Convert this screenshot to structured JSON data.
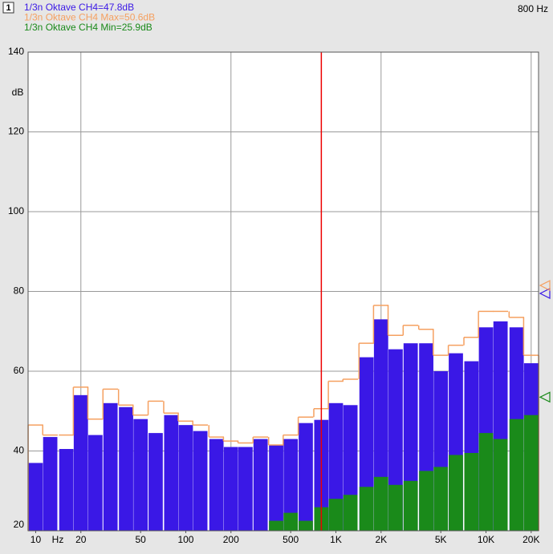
{
  "chart_data": {
    "type": "spectrum",
    "channel": "1",
    "cursor_label": "800 Hz",
    "cursor": 800,
    "y_unit": "dB",
    "x_unit": "Hz",
    "x": [
      10,
      12.5,
      16,
      20,
      25,
      31.5,
      40,
      50,
      63,
      80,
      100,
      125,
      160,
      200,
      250,
      315,
      400,
      500,
      630,
      800,
      1000,
      1250,
      1600,
      2000,
      2500,
      3150,
      4000,
      5000,
      6300,
      8000,
      10000,
      12500,
      16000,
      20000
    ],
    "series": [
      {
        "name": "1/3n Oktave CH4=47.8dB",
        "color": "#3a18e6",
        "style": "bar",
        "level_marker": 79.5,
        "values": [
          37,
          43.5,
          40.5,
          54,
          44,
          52,
          51,
          48,
          44.5,
          49,
          46.5,
          45,
          43,
          41,
          41,
          43,
          41.5,
          43,
          47,
          47.8,
          52,
          51.5,
          63.5,
          73,
          65.5,
          67,
          67,
          60,
          64.5,
          62.5,
          71,
          72.5,
          71,
          62
        ]
      },
      {
        "name": "1/3n Oktave CH4 Max=50.6dB",
        "color": "#f5a060",
        "style": "outline",
        "level_marker": 81.5,
        "values": [
          46.5,
          44,
          44,
          56,
          48,
          55.5,
          51.5,
          49,
          52.5,
          49.5,
          47.5,
          46.5,
          43.5,
          42.5,
          42,
          43.5,
          41.5,
          44,
          48.5,
          50.6,
          57.5,
          58,
          67,
          76.5,
          69,
          71.5,
          70.5,
          64,
          66.5,
          68.5,
          75,
          75,
          73.5,
          64
        ]
      },
      {
        "name": "1/3n Oktave CH4 Min=25.9dB",
        "color": "#1a8a1a",
        "style": "bar",
        "level_marker": 53.5,
        "values": [
          null,
          null,
          null,
          null,
          null,
          null,
          null,
          null,
          null,
          null,
          null,
          null,
          null,
          null,
          null,
          null,
          22.5,
          24.5,
          22.5,
          25.9,
          28,
          29,
          31,
          33.5,
          31.5,
          32.5,
          35,
          36,
          39,
          39.5,
          44.5,
          43,
          48,
          49
        ]
      }
    ],
    "xlim": [
      8.9,
      22400
    ],
    "xlog": true,
    "xticks": [
      10,
      20,
      50,
      100,
      200,
      500,
      {
        "value": 1000,
        "label": "1K"
      },
      {
        "value": 2000,
        "label": "2K"
      },
      {
        "value": 5000,
        "label": "5K"
      },
      {
        "value": 10000,
        "label": "10K"
      },
      {
        "value": 20000,
        "label": "20K"
      }
    ],
    "xgrid": [
      20,
      200,
      2000,
      20000
    ],
    "ylim": [
      20,
      140
    ],
    "yticks": [
      20,
      40,
      60,
      80,
      100,
      120,
      140
    ]
  }
}
